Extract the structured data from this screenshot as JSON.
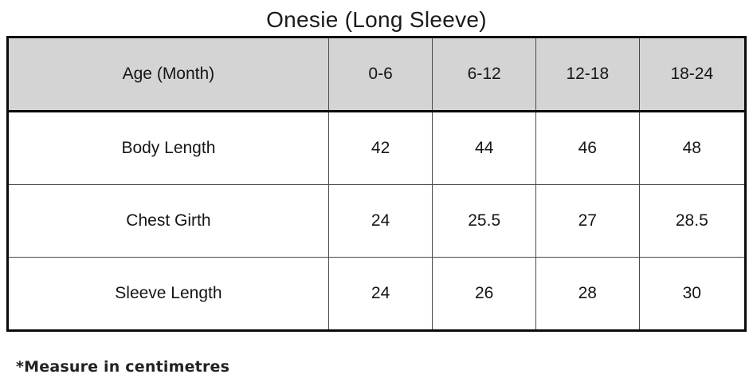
{
  "title": "Onesie (Long Sleeve)",
  "footnote": "*Measure in centimetres",
  "colors": {
    "header_bg": "#d4d4d4",
    "outer_border": "#0a0a0a",
    "inner_border": "#4a4a4a",
    "text": "#161616",
    "background": "#ffffff"
  },
  "table": {
    "header": [
      "Age (Month)",
      "0-6",
      "6-12",
      "12-18",
      "18-24"
    ],
    "rows": [
      {
        "label": "Body Length",
        "values": [
          "42",
          "44",
          "46",
          "48"
        ]
      },
      {
        "label": "Chest Girth",
        "values": [
          "24",
          "25.5",
          "27",
          "28.5"
        ]
      },
      {
        "label": "Sleeve Length",
        "values": [
          "24",
          "26",
          "28",
          "30"
        ]
      }
    ]
  },
  "chart_data": {
    "type": "table",
    "title": "Onesie (Long Sleeve)",
    "columns": [
      "Age (Month)",
      "0-6",
      "6-12",
      "12-18",
      "18-24"
    ],
    "rows": [
      [
        "Body Length",
        42,
        44,
        46,
        48
      ],
      [
        "Chest Girth",
        24,
        25.5,
        27,
        28.5
      ],
      [
        "Sleeve Length",
        24,
        26,
        28,
        30
      ]
    ],
    "units": "centimetres",
    "footnote": "*Measure in centimetres"
  }
}
